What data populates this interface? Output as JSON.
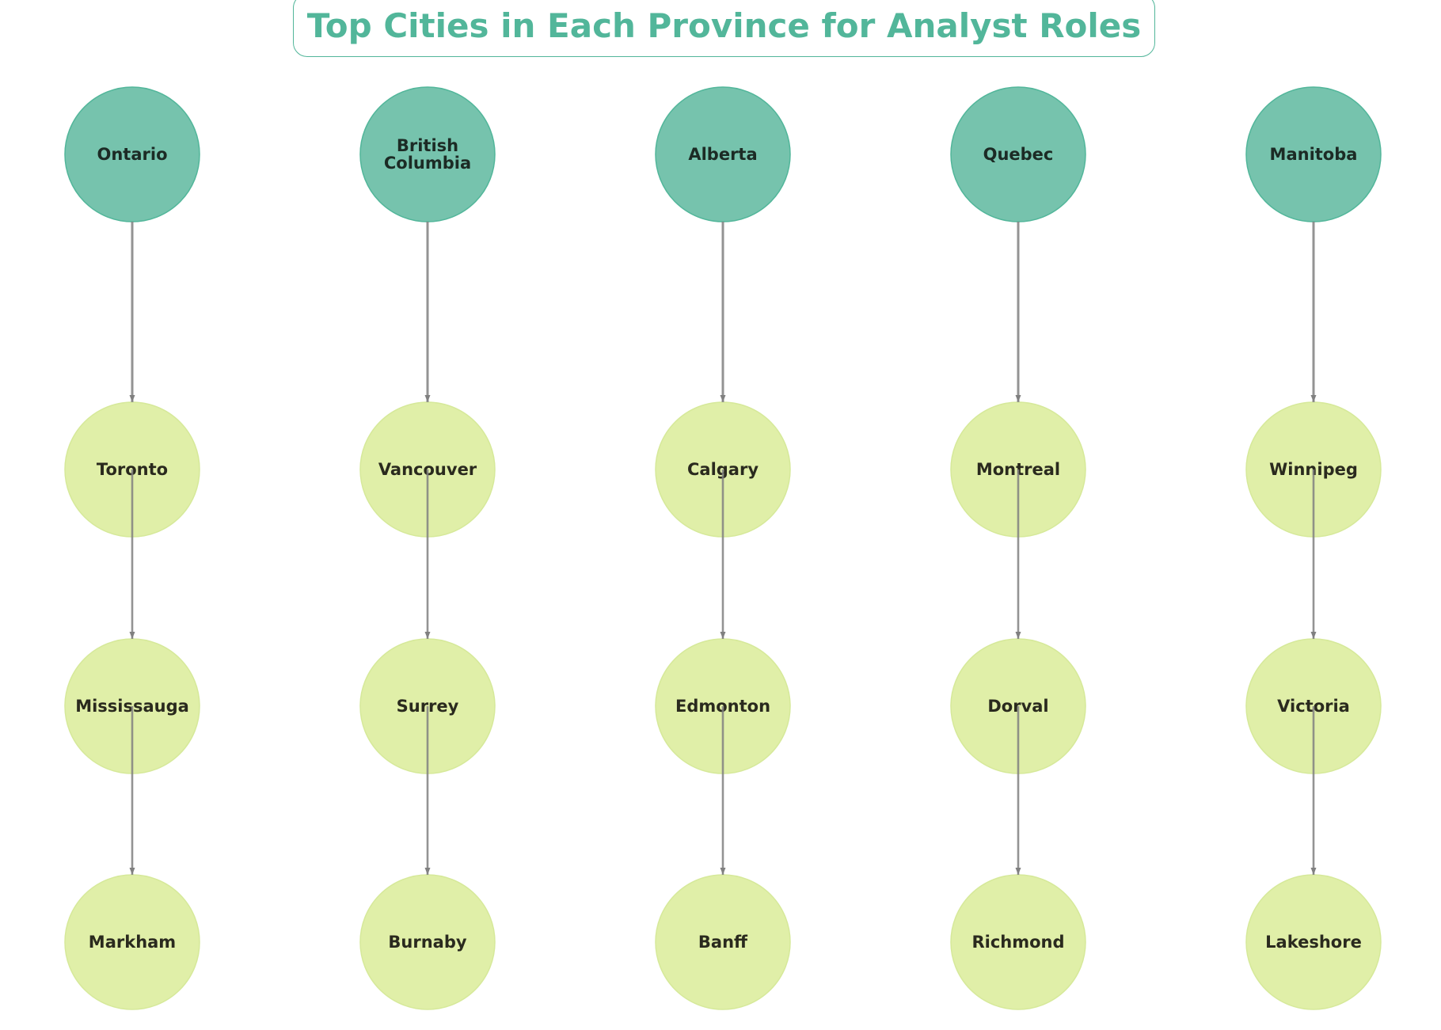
{
  "title": "Top Cities in Each Province for Analyst Roles",
  "colors": {
    "title": "#52b69a",
    "province_fill": "#76c3ad",
    "province_stroke": "#52b69a",
    "city_fill": "#e0efa8",
    "city_stroke": "#d6e99a",
    "edge": "#808080",
    "province_text": "#1c2b25",
    "city_text": "#2a2a1e"
  },
  "provinces": [
    {
      "name": "Ontario",
      "label_lines": [
        "Ontario"
      ],
      "cities": [
        "Toronto",
        "Mississauga",
        "Markham"
      ]
    },
    {
      "name": "British Columbia",
      "label_lines": [
        "British",
        "Columbia"
      ],
      "cities": [
        "Vancouver",
        "Surrey",
        "Burnaby"
      ]
    },
    {
      "name": "Alberta",
      "label_lines": [
        "Alberta"
      ],
      "cities": [
        "Calgary",
        "Edmonton",
        "Banff"
      ]
    },
    {
      "name": "Quebec",
      "label_lines": [
        "Quebec"
      ],
      "cities": [
        "Montreal",
        "Dorval",
        "Richmond"
      ]
    },
    {
      "name": "Manitoba",
      "label_lines": [
        "Manitoba"
      ],
      "cities": [
        "Winnipeg",
        "Victoria",
        "Lakeshore"
      ]
    }
  ]
}
